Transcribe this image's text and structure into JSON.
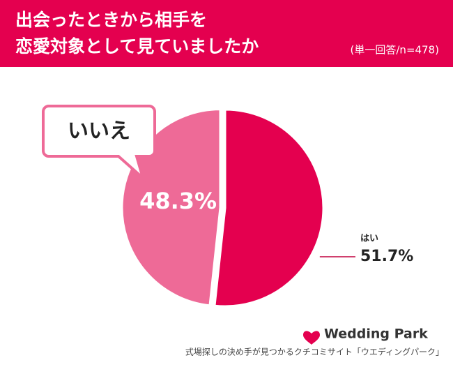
{
  "chart_data": {
    "type": "pie",
    "title": [
      "出会ったときから相手を",
      "恋愛対象として見ていましたか"
    ],
    "subtitle": "(単一回答/n=478)",
    "categories": [
      "はい",
      "いいえ"
    ],
    "values": [
      51.7,
      48.3
    ],
    "value_labels": [
      "51.7%",
      "48.3%"
    ],
    "colors": [
      "#e4004f",
      "#ee6a97"
    ],
    "brand": "Wedding Park",
    "source": "式場探しの決め手が見つかるクチコミサイト「ウエディングパーク」"
  }
}
